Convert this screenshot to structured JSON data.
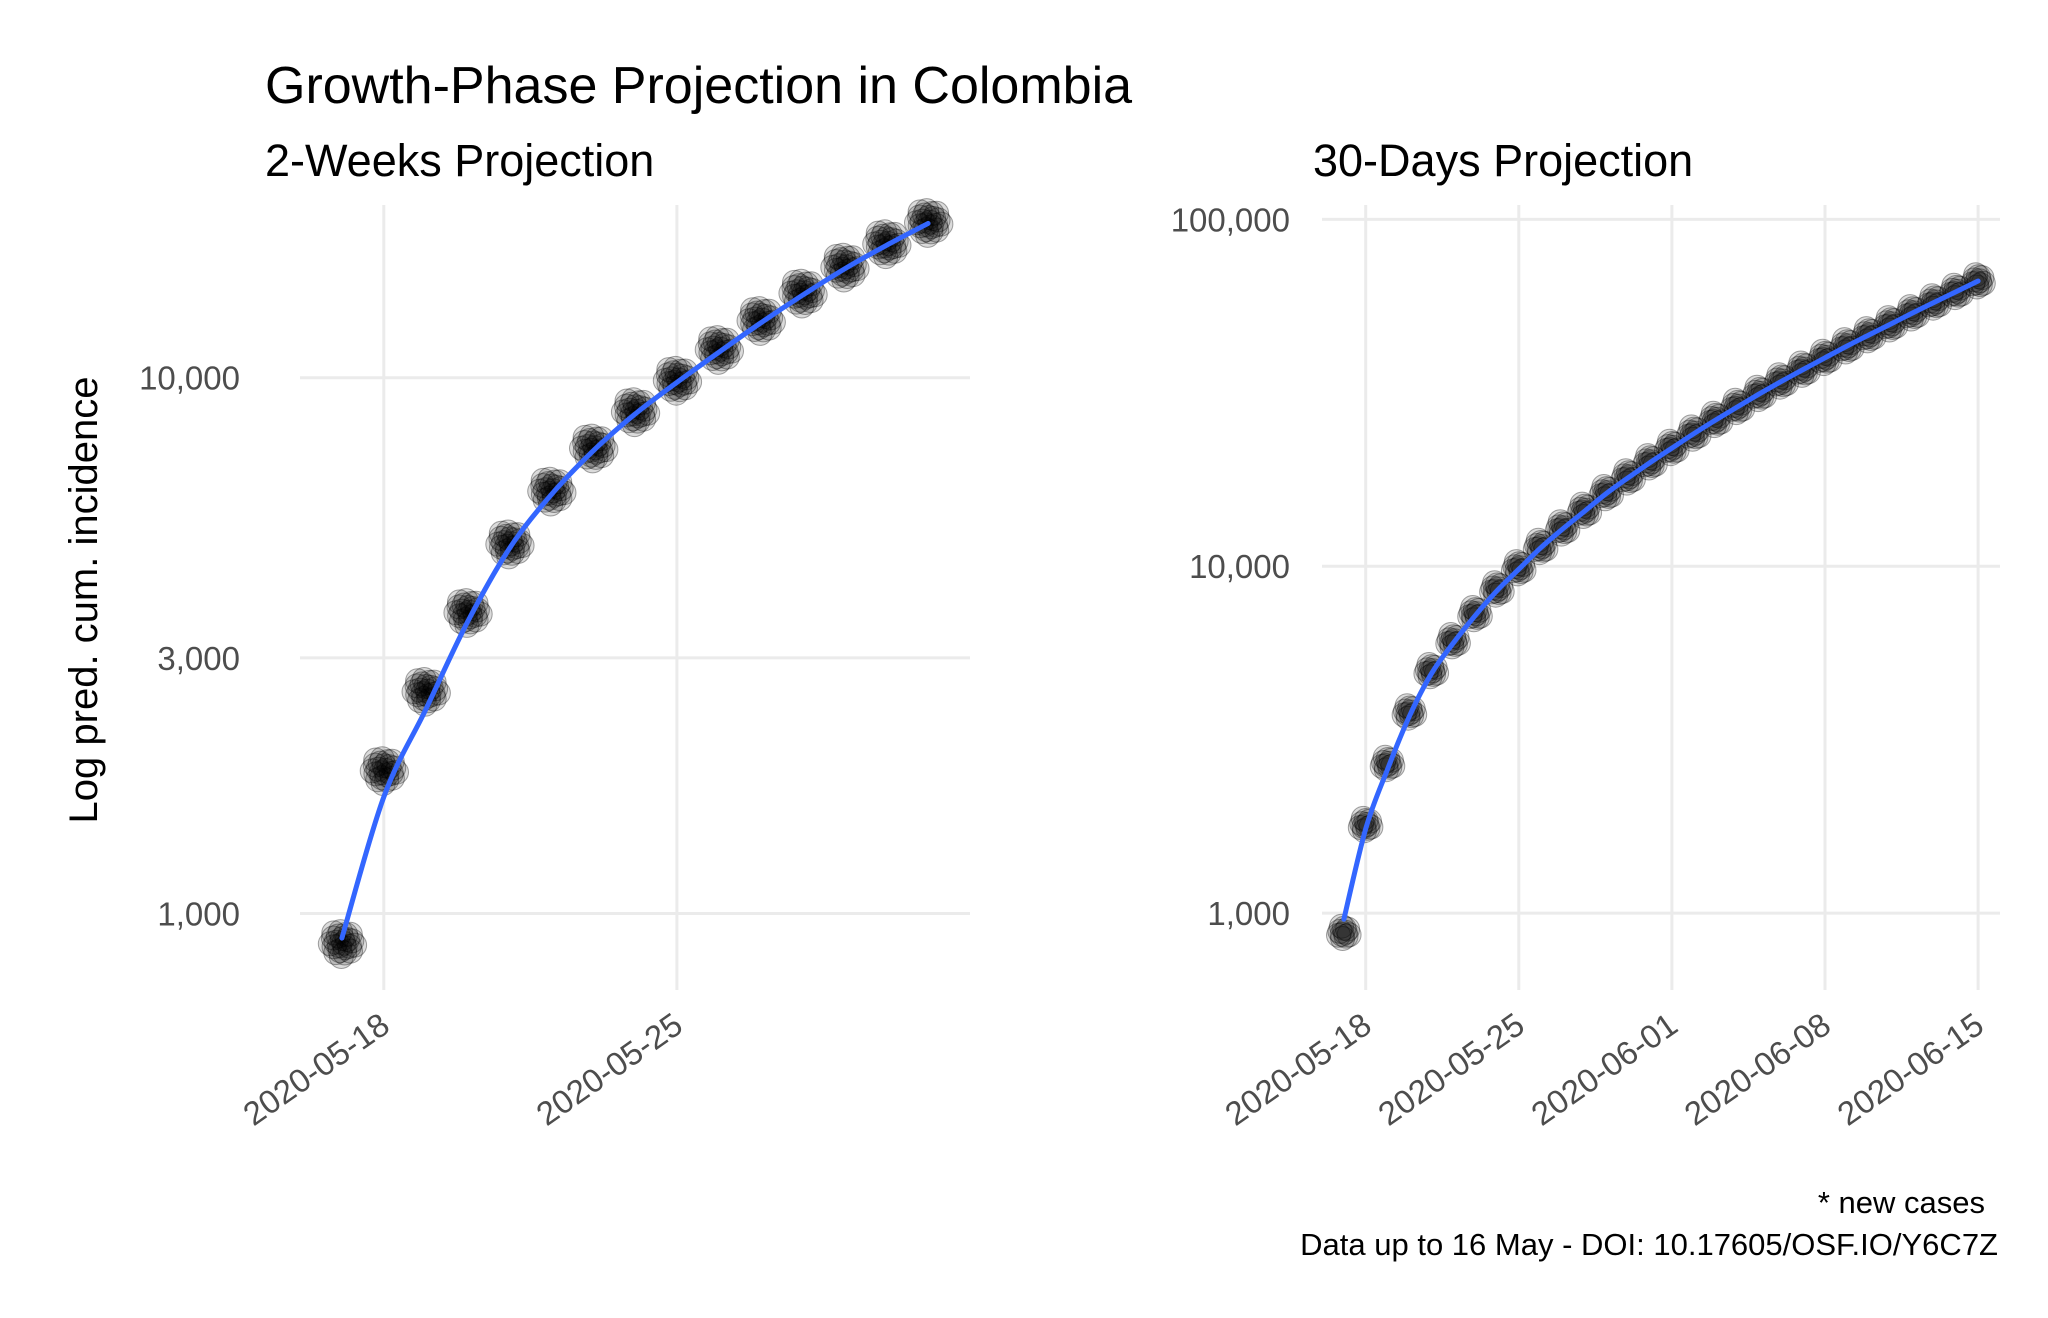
{
  "title": "Growth-Phase Projection in Colombia",
  "caption": {
    "line1": "* new cases",
    "line2": "Data up to 16 May - DOI: 10.17605/OSF.IO/Y6C7Z"
  },
  "colors": {
    "fit": "#3366ff",
    "points": "#000000",
    "grid": "#ebebeb"
  },
  "chart_data": [
    {
      "type": "scatter",
      "subtitle": "2-Weeks Projection",
      "ylabel": "Log pred. cum. incidence",
      "yscale": "log10",
      "ylim": [
        720,
        21000
      ],
      "xlim": [
        "2020-05-16",
        "2020-06-01"
      ],
      "x_ticks": [
        "2020-05-18",
        "2020-05-25"
      ],
      "y_ticks": [
        1000,
        3000,
        10000
      ],
      "y_tick_labels": [
        "1,000",
        "3,000",
        "10,000"
      ],
      "x": [
        "2020-05-17",
        "2020-05-18",
        "2020-05-19",
        "2020-05-20",
        "2020-05-21",
        "2020-05-22",
        "2020-05-23",
        "2020-05-24",
        "2020-05-25",
        "2020-05-26",
        "2020-05-27",
        "2020-05-28",
        "2020-05-29",
        "2020-05-30",
        "2020-05-31"
      ],
      "values": [
        880,
        1850,
        2600,
        3650,
        4900,
        6150,
        7400,
        8650,
        9900,
        11300,
        12800,
        14400,
        16100,
        17800,
        19500
      ],
      "fit": [
        900,
        1650,
        2400,
        3500,
        4800,
        6050,
        7300,
        8550,
        9800,
        11150,
        12650,
        14250,
        15950,
        17650,
        19400
      ],
      "grid": true
    },
    {
      "type": "scatter",
      "subtitle": "30-Days Projection",
      "ylabel": "",
      "yscale": "log10",
      "ylim": [
        600,
        110000
      ],
      "xlim": [
        "2020-05-16",
        "2020-06-16"
      ],
      "x_ticks": [
        "2020-05-18",
        "2020-05-25",
        "2020-06-01",
        "2020-06-08",
        "2020-06-15"
      ],
      "y_ticks": [
        1000,
        10000,
        100000
      ],
      "y_tick_labels": [
        "1,000",
        "10,000",
        "100,000"
      ],
      "x": [
        "2020-05-17",
        "2020-05-18",
        "2020-05-19",
        "2020-05-20",
        "2020-05-21",
        "2020-05-22",
        "2020-05-23",
        "2020-05-24",
        "2020-05-25",
        "2020-05-26",
        "2020-05-27",
        "2020-05-28",
        "2020-05-29",
        "2020-05-30",
        "2020-05-31",
        "2020-06-01",
        "2020-06-02",
        "2020-06-03",
        "2020-06-04",
        "2020-06-05",
        "2020-06-06",
        "2020-06-07",
        "2020-06-08",
        "2020-06-09",
        "2020-06-10",
        "2020-06-11",
        "2020-06-12",
        "2020-06-13",
        "2020-06-14",
        "2020-06-15"
      ],
      "values": [
        880,
        1800,
        2700,
        3800,
        5000,
        6100,
        7300,
        8600,
        9900,
        11400,
        12900,
        14500,
        16300,
        18100,
        20000,
        22000,
        24200,
        26500,
        28900,
        31500,
        34200,
        37000,
        40000,
        43200,
        46500,
        50000,
        53800,
        57800,
        62000,
        66500
      ],
      "fit": [
        960,
        1750,
        2600,
        3700,
        4900,
        6000,
        7200,
        8500,
        9800,
        11300,
        12800,
        14400,
        16200,
        18000,
        19900,
        21900,
        24100,
        26400,
        28800,
        31400,
        34100,
        36900,
        39900,
        43100,
        46400,
        49900,
        53700,
        57700,
        61900,
        66400
      ],
      "grid": true
    }
  ]
}
